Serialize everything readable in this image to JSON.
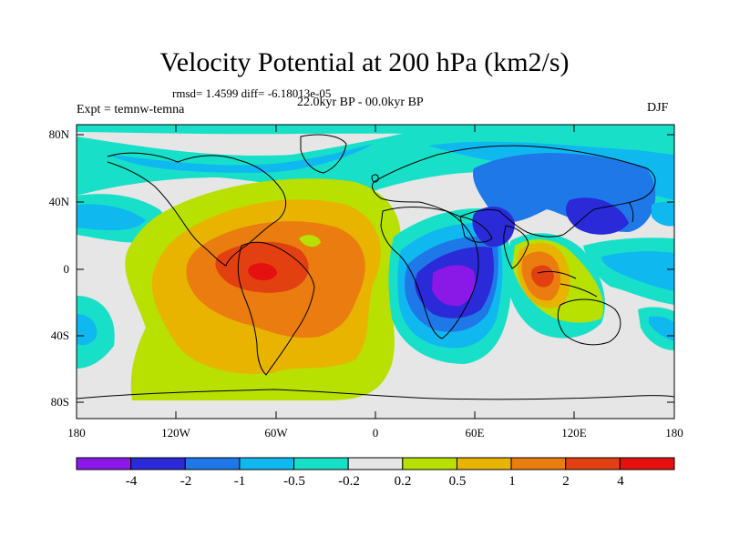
{
  "title": "Velocity Potential at 200 hPa (km2/s)",
  "stats": "rmsd= 1.4599 diff= -6.18013e-05",
  "experiment": "Expt = temnw-temna",
  "period": "22.0kyr BP - 00.0kyr BP",
  "season": "DJF",
  "lat_labels": [
    "80N",
    "40N",
    "0",
    "40S",
    "80S"
  ],
  "lon_labels": [
    "180",
    "120W",
    "60W",
    "0",
    "60E",
    "120E",
    "180"
  ],
  "colorbar": {
    "labels": [
      "-4",
      "-2",
      "-1",
      "-0.5",
      "-0.2",
      "0.2",
      "0.5",
      "1",
      "2",
      "4"
    ],
    "colors": [
      "#8a18e6",
      "#2a2ad8",
      "#1e78e8",
      "#10b8f0",
      "#18e0c8",
      "#e6e6e6",
      "#b8e000",
      "#e8b400",
      "#ea7c10",
      "#e24010",
      "#e51010"
    ]
  },
  "fields": {
    "background": "#e6e6e6",
    "land_outline": "#000000"
  }
}
